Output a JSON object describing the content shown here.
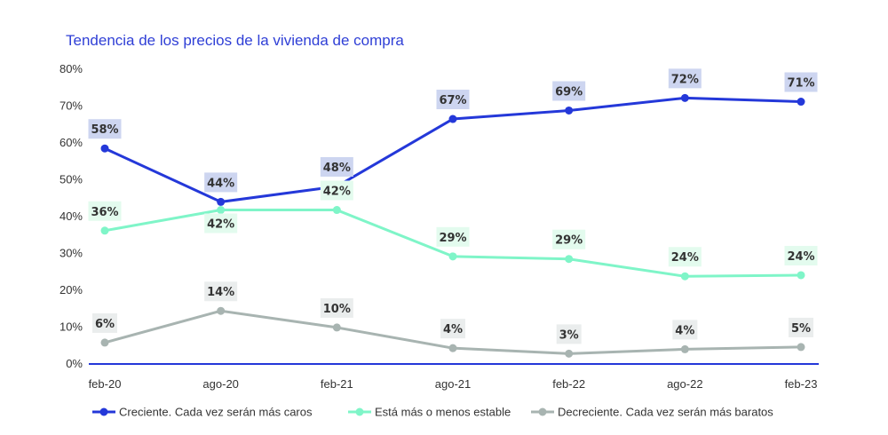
{
  "chart_data": {
    "type": "line",
    "title": "Tendencia de los precios de la vivienda de compra",
    "categories": [
      "feb-20",
      "ago-20",
      "feb-21",
      "ago-21",
      "feb-22",
      "ago-22",
      "feb-23"
    ],
    "ylim": [
      0,
      80
    ],
    "yticks": [
      0,
      10,
      20,
      30,
      40,
      50,
      60,
      70,
      80
    ],
    "ytick_labels": [
      "0%",
      "10%",
      "20%",
      "30%",
      "40%",
      "50%",
      "60%",
      "70%",
      "80%"
    ],
    "xlabel": "",
    "ylabel": "",
    "grid": false,
    "legend_position": "bottom",
    "series": [
      {
        "name": "Creciente. Cada vez serán más caros",
        "color": "#2438d9",
        "label_bg": "#cdd5f0",
        "values": [
          58.5,
          44,
          48.2,
          66.5,
          68.8,
          72.2,
          71.2
        ],
        "labels": [
          "58%",
          "44%",
          "48%",
          "67%",
          "69%",
          "72%",
          "71%"
        ],
        "label_side": [
          "above",
          "above",
          "above",
          "above",
          "above",
          "above",
          "above"
        ]
      },
      {
        "name": "Está más o menos estable",
        "color": "#7ff5c8",
        "label_bg": "#e3fbee",
        "values": [
          36.2,
          41.8,
          41.8,
          29.2,
          28.5,
          23.8,
          24.1
        ],
        "labels": [
          "36%",
          "42%",
          "42%",
          "29%",
          "29%",
          "24%",
          "24%"
        ],
        "label_side": [
          "above",
          "below",
          "above",
          "above",
          "above",
          "above",
          "above"
        ]
      },
      {
        "name": "Decreciente. Cada vez serán más baratos",
        "color": "#a8b4b1",
        "label_bg": "#eaeded",
        "values": [
          5.8,
          14.4,
          9.9,
          4.3,
          2.8,
          4,
          4.6
        ],
        "labels": [
          "6%",
          "14%",
          "10%",
          "4%",
          "3%",
          "4%",
          "5%"
        ],
        "label_side": [
          "above",
          "above",
          "above",
          "above",
          "above",
          "above",
          "above"
        ]
      }
    ]
  }
}
